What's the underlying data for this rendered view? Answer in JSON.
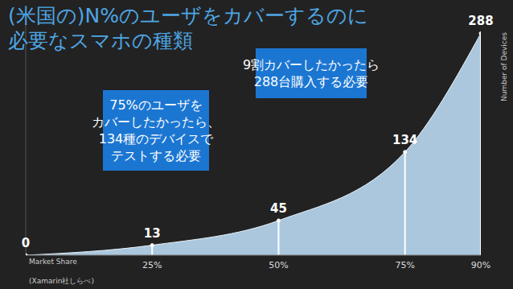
{
  "chart_data": {
    "type": "area",
    "title": "(米国の)N%のユーザをカバーするのに\n必要なスマホの種類",
    "x": [
      0,
      25,
      50,
      75,
      90
    ],
    "values": [
      0,
      13,
      45,
      134,
      288
    ],
    "xlim": [
      0,
      90
    ],
    "xticks": [
      {
        "value": 25,
        "label": "25%"
      },
      {
        "value": 50,
        "label": "50%"
      },
      {
        "value": 75,
        "label": "75%"
      },
      {
        "value": 90,
        "label": "90%"
      }
    ],
    "ylim": [
      0,
      300
    ],
    "xlabel": "Market Share",
    "ylabel": "Number of Devices",
    "source": "(Xamarin社しらべ)",
    "annotations": [
      "75%のユーザを\nカバーしたかったら、\n134種のデバイスで\nテストする必要",
      "9割カバーしたかったら\n288台購入する必要"
    ],
    "color": "#b9d9f2",
    "data_labels": true,
    "tick_labels": "x"
  }
}
